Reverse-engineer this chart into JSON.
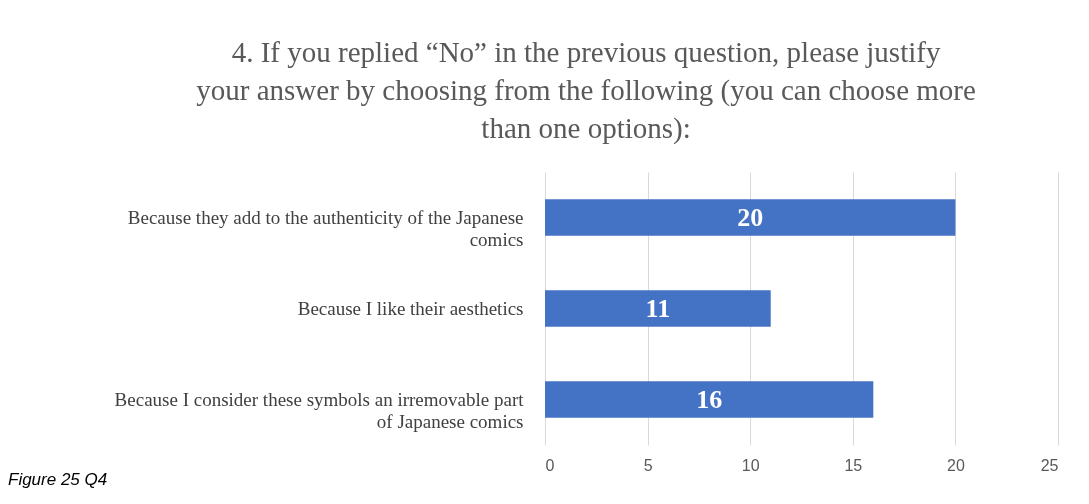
{
  "chart_data": {
    "type": "bar",
    "orientation": "horizontal",
    "title": "4. If you replied “No” in the previous question, please justify your answer by choosing from the following (you can choose more than one options):",
    "categories": [
      "Because they add to the authenticity of the Japanese comics",
      "Because I like their aesthetics",
      "Because I consider these symbols an irremovable part of Japanese comics"
    ],
    "values": [
      20,
      11,
      16
    ],
    "color": "#4472c4",
    "data_labels": true,
    "xlim": [
      0,
      25
    ],
    "xticks": [
      0,
      5,
      10,
      15,
      20,
      25
    ],
    "grid": "x",
    "annotations": [
      "Figure 25 Q4"
    ]
  }
}
